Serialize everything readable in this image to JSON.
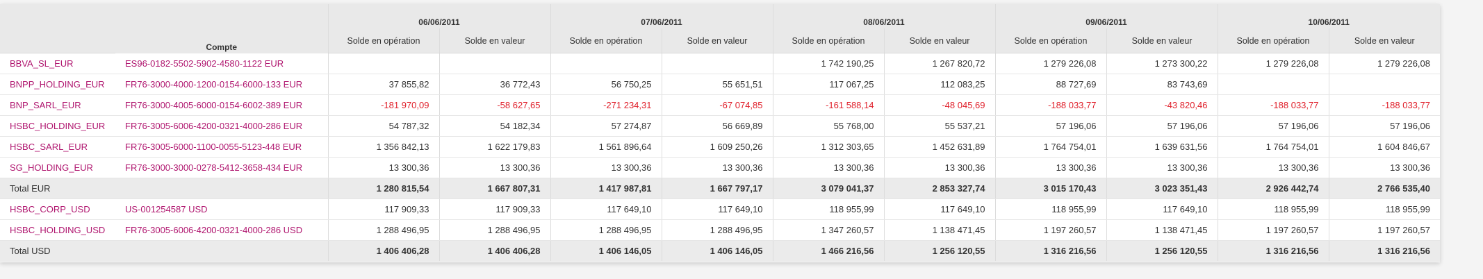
{
  "header": {
    "compte_label": "Compte",
    "dates": [
      "06/06/2011",
      "07/06/2011",
      "08/06/2011",
      "09/06/2011",
      "10/06/2011"
    ],
    "sub_op": "Solde en opération",
    "sub_val": "Solde en valeur"
  },
  "rows": [
    {
      "entity": "BBVA_SL_EUR",
      "account": "ES96-0182-5502-5902-4580-1122 EUR",
      "values": [
        "",
        "",
        "",
        "",
        "1 742 190,25",
        "1 267 820,72",
        "1 279 226,08",
        "1 273 300,22",
        "1 279 226,08",
        "1 279 226,08"
      ]
    },
    {
      "entity": "BNPP_HOLDING_EUR",
      "account": "FR76-3000-4000-1200-0154-6000-133 EUR",
      "values": [
        "37 855,82",
        "36 772,43",
        "56 750,25",
        "55 651,51",
        "117 067,25",
        "112 083,25",
        "88 727,69",
        "83 743,69",
        "",
        ""
      ]
    },
    {
      "entity": "BNP_SARL_EUR",
      "account": "FR76-3000-4005-6000-0154-6002-389 EUR",
      "values": [
        "-181 970,09",
        "-58 627,65",
        "-271 234,31",
        "-67 074,85",
        "-161 588,14",
        "-48 045,69",
        "-188 033,77",
        "-43 820,46",
        "-188 033,77",
        "-188 033,77"
      ]
    },
    {
      "entity": "HSBC_HOLDING_EUR",
      "account": "FR76-3005-6006-4200-0321-4000-286 EUR",
      "values": [
        "54 787,32",
        "54 182,34",
        "57 274,87",
        "56 669,89",
        "55 768,00",
        "55 537,21",
        "57 196,06",
        "57 196,06",
        "57 196,06",
        "57 196,06"
      ]
    },
    {
      "entity": "HSBC_SARL_EUR",
      "account": "FR76-3005-6000-1100-0055-5123-448 EUR",
      "values": [
        "1 356 842,13",
        "1 622 179,83",
        "1 561 896,64",
        "1 609 250,26",
        "1 312 303,65",
        "1 452 631,89",
        "1 764 754,01",
        "1 639 631,56",
        "1 764 754,01",
        "1 604 846,67"
      ]
    },
    {
      "entity": "SG_HOLDING_EUR",
      "account": "FR76-3000-3000-0278-5412-3658-434 EUR",
      "values": [
        "13 300,36",
        "13 300,36",
        "13 300,36",
        "13 300,36",
        "13 300,36",
        "13 300,36",
        "13 300,36",
        "13 300,36",
        "13 300,36",
        "13 300,36"
      ]
    },
    {
      "entity": "Total EUR",
      "account": "",
      "total": true,
      "values": [
        "1 280 815,54",
        "1 667 807,31",
        "1 417 987,81",
        "1 667 797,17",
        "3 079 041,37",
        "2 853 327,74",
        "3 015 170,43",
        "3 023 351,43",
        "2 926 442,74",
        "2 766 535,40"
      ]
    },
    {
      "entity": "HSBC_CORP_USD",
      "account": "US-001254587 USD",
      "values": [
        "117 909,33",
        "117 909,33",
        "117 649,10",
        "117 649,10",
        "118 955,99",
        "117 649,10",
        "118 955,99",
        "117 649,10",
        "118 955,99",
        "118 955,99"
      ]
    },
    {
      "entity": "HSBC_HOLDING_USD",
      "account": "FR76-3005-6006-4200-0321-4000-286 USD",
      "values": [
        "1 288 496,95",
        "1 288 496,95",
        "1 288 496,95",
        "1 288 496,95",
        "1 347 260,57",
        "1 138 471,45",
        "1 197 260,57",
        "1 138 471,45",
        "1 197 260,57",
        "1 197 260,57"
      ]
    },
    {
      "entity": "Total USD",
      "account": "",
      "total": true,
      "values": [
        "1 406 406,28",
        "1 406 406,28",
        "1 406 146,05",
        "1 406 146,05",
        "1 466 216,56",
        "1 256 120,55",
        "1 316 216,56",
        "1 256 120,55",
        "1 316 216,56",
        "1 316 216,56"
      ]
    }
  ],
  "colors": {
    "link": "#b0166f",
    "negative": "#e0202b",
    "header_bg": "#e9e9e9",
    "total_bg": "#ebebeb"
  }
}
